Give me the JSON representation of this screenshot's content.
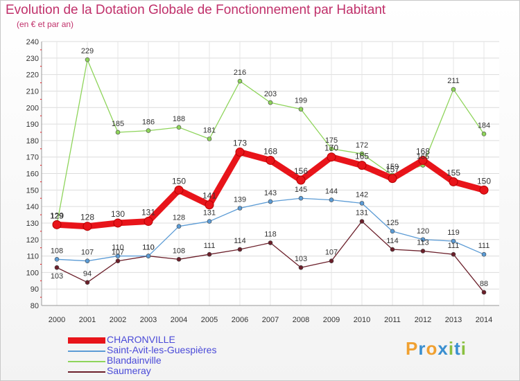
{
  "title": "Evolution de la Dotation Globale de Fonctionnement par Habitant",
  "subtitle": "(en € et par an)",
  "logo": {
    "letters": [
      "P",
      "r",
      "o",
      "x",
      "i",
      "t",
      "i"
    ],
    "colors": [
      "#f0a030",
      "#3a8fd0",
      "#f0a030",
      "#3a8fd0",
      "#8ac040",
      "#3a8fd0",
      "#8ac040"
    ]
  },
  "chart_data": {
    "type": "line",
    "x": [
      2000,
      2001,
      2002,
      2003,
      2004,
      2005,
      2006,
      2007,
      2008,
      2009,
      2010,
      2011,
      2012,
      2013,
      2014
    ],
    "ylim": [
      80,
      240
    ],
    "yticks": [
      80,
      90,
      100,
      110,
      120,
      130,
      140,
      150,
      160,
      170,
      180,
      190,
      200,
      210,
      220,
      230,
      240
    ],
    "grid": true,
    "legend": "bottom-left",
    "series": [
      {
        "name": "Saumeray",
        "color": "#6b1f2a",
        "values": [
          103,
          94,
          107,
          110,
          108,
          111,
          114,
          118,
          103,
          107,
          131,
          114,
          113,
          111,
          88
        ]
      },
      {
        "name": "Saint-Avit-les-Guespières",
        "color": "#5b9bd5",
        "values": [
          108,
          107,
          110,
          110,
          128,
          131,
          139,
          143,
          145,
          144,
          142,
          125,
          120,
          119,
          111
        ]
      },
      {
        "name": "Blandainville",
        "color": "#8ed45a",
        "values": [
          129,
          229,
          185,
          186,
          188,
          181,
          216,
          203,
          199,
          175,
          172,
          159,
          165,
          211,
          184
        ]
      },
      {
        "name": "CHARONVILLE",
        "color": "#e8141a",
        "values": [
          129,
          128,
          130,
          131,
          150,
          141,
          173,
          168,
          156,
          170,
          165,
          157,
          168,
          155,
          150
        ]
      }
    ]
  }
}
